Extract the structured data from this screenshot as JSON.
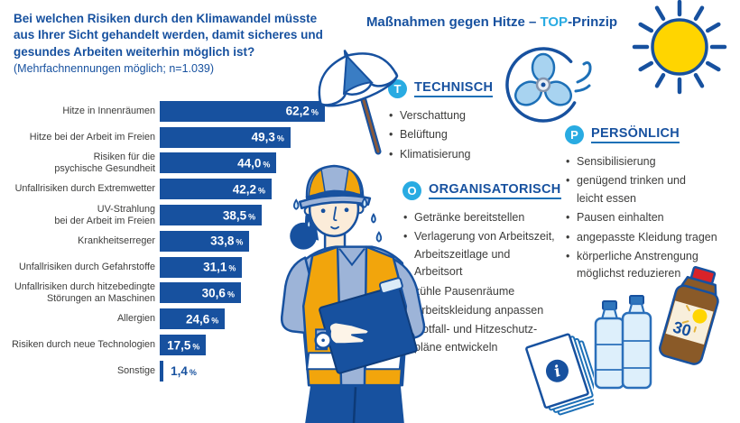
{
  "colors": {
    "dark_blue": "#17519f",
    "cyan": "#29abe2",
    "text_gray": "#3c3c3b",
    "mid_blue": "#1d70b7",
    "sun_yellow": "#ffd500",
    "vest_yellow": "#f2a50c",
    "light_blue": "#a8d3f0",
    "pale_blue": "#ddeffb"
  },
  "question": {
    "bold": "Bei welchen Risiken durch den Klimawandel müsste aus Ihrer Sicht gehandelt werden, damit sicheres und gesundes Arbeiten weiterhin möglich ist?",
    "note": "(Mehrfachnennungen möglich; n=1.039)"
  },
  "chart_data": {
    "type": "bar",
    "orientation": "horizontal",
    "title": "Bei welchen Risiken durch den Klimawandel müsste aus Ihrer Sicht gehandelt werden, damit sicheres und gesundes Arbeiten weiterhin möglich ist?",
    "subtitle": "(Mehrfachnennungen möglich; n=1.039)",
    "unit": "%",
    "xlim": [
      0,
      65
    ],
    "grid": false,
    "bar_color": "#17519f",
    "categories": [
      "Hitze in Innenräumen",
      "Hitze bei der Arbeit im Freien",
      "Risiken für die\npsychische Gesundheit",
      "Unfallrisiken durch Extremwetter",
      "UV-Strahlung\nbei der Arbeit im Freien",
      "Krankheitserreger",
      "Unfallrisiken durch Gefahrstoffe",
      "Unfallrisiken durch hitzebedingte\nStörungen an Maschinen",
      "Allergien",
      "Risiken durch neue Technologien",
      "Sonstige"
    ],
    "values": [
      62.2,
      49.3,
      44.0,
      42.2,
      38.5,
      33.8,
      31.1,
      30.6,
      24.6,
      17.5,
      1.4
    ],
    "value_labels": [
      "62,2",
      "49,3",
      "44,0",
      "42,2",
      "38,5",
      "33,8",
      "31,1",
      "30,6",
      "24,6",
      "17,5",
      "1,4"
    ]
  },
  "top_header": {
    "prefix": "Maßnahmen gegen Hitze – ",
    "highlight": "TOP",
    "suffix": "-Prinzip"
  },
  "sections": {
    "technisch": {
      "letter": "T",
      "title": "TECHNISCH",
      "items": [
        "Verschattung",
        "Belüftung",
        "Klimatisierung"
      ]
    },
    "organisatorisch": {
      "letter": "O",
      "title": "ORGANISATORISCH",
      "items": [
        "Getränke bereitstellen",
        "Verlagerung von Arbeitszeit,\nArbeitszeitlage und\nArbeitsort",
        "kühle Pausenräume",
        "Arbeitskleidung anpassen",
        "Notfall- und Hitzeschutz-\npläne entwickeln"
      ]
    },
    "persoenlich": {
      "letter": "P",
      "title": "PERSÖNLICH",
      "items": [
        "Sensibilisierung",
        "genügend trinken und\nleicht essen",
        "Pausen einhalten",
        "angepasste Kleidung tragen",
        "körperliche Anstrengung\nmöglichst reduzieren"
      ]
    }
  },
  "icons": {
    "sun": "sun-icon",
    "parasol": "parasol-icon",
    "fan": "fan-icon",
    "worker": "sweating-worker-illustration",
    "booklet": "info-booklet-icon",
    "bottles": "water-bottles-icon",
    "sunscreen": "sunscreen-icon",
    "info_glyph": "i",
    "sunscreen_spf_label": "30"
  }
}
